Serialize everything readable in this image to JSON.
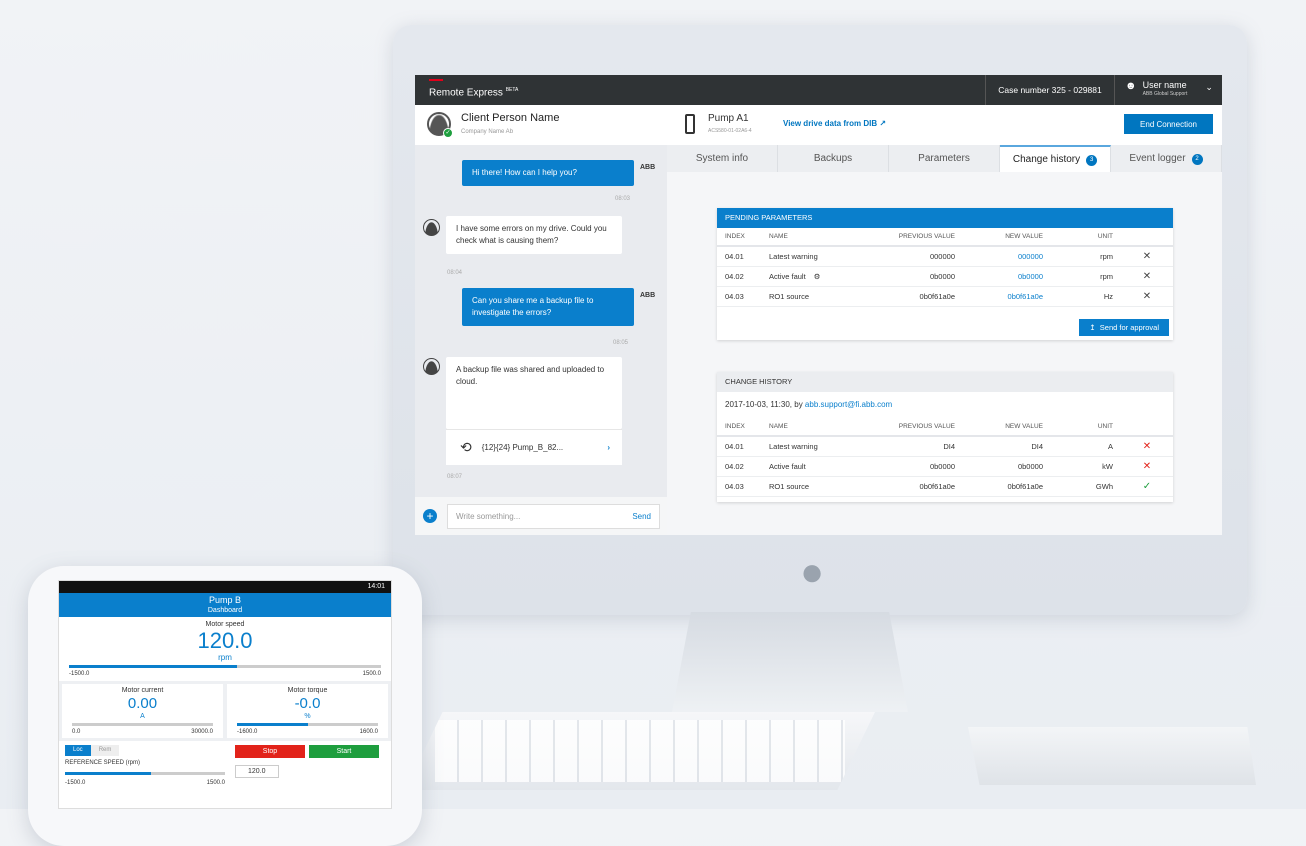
{
  "app": {
    "brand": "Remote Express",
    "beta": "BETA",
    "case_number": "Case number  325 - 029881",
    "user_name": "User name",
    "user_org": "ABB Global Support"
  },
  "client": {
    "name": "Client Person Name",
    "company": "Company Name Ab",
    "status": "online"
  },
  "drive": {
    "name": "Pump A1",
    "id": "ACS580-01-02A6-4",
    "link": "View drive data from DIB"
  },
  "end_connection": "End Connection",
  "tabs": [
    {
      "label": "System info"
    },
    {
      "label": "Backups"
    },
    {
      "label": "Parameters"
    },
    {
      "label": "Change history",
      "badge": "3",
      "active": true
    },
    {
      "label": "Event logger",
      "badge": "2"
    }
  ],
  "chat": {
    "messages": [
      {
        "from": "ABB",
        "text": "Hi there! How can I help you?",
        "time": "08:03"
      },
      {
        "from": "client",
        "text": "I have some errors on my drive. Could you check what is causing them?",
        "time": "08:04"
      },
      {
        "from": "ABB",
        "text": "Can you share me a backup file to investigate the errors?",
        "time": "08:05"
      },
      {
        "from": "client",
        "text": "A backup file was shared and uploaded to cloud.",
        "file": "{12}{24} Pump_B_82...",
        "time": "08:07"
      }
    ],
    "placeholder": "Write something...",
    "send": "Send"
  },
  "pending": {
    "title": "PENDING PARAMETERS",
    "columns": [
      "INDEX",
      "NAME",
      "PREVIOUS VALUE",
      "NEW VALUE",
      "UNIT"
    ],
    "rows": [
      [
        "04.01",
        "Latest warning",
        "000000",
        "000000",
        "rpm"
      ],
      [
        "04.02",
        "Active fault",
        "0b0000",
        "0b0000",
        "rpm"
      ],
      [
        "04.03",
        "RO1 source",
        "0b0f61a0e",
        "0b0f61a0e",
        "Hz"
      ]
    ],
    "button": "Send for approval"
  },
  "history": {
    "title": "CHANGE HISTORY",
    "date": "2017-10-03, 11:30, by ",
    "author": "abb.support@fi.abb.com",
    "columns": [
      "INDEX",
      "NAME",
      "PREVIOUS VALUE",
      "NEW VALUE",
      "UNIT"
    ],
    "rows": [
      [
        "04.01",
        "Latest warning",
        "DI4",
        "DI4",
        "A",
        "rejected"
      ],
      [
        "04.02",
        "Active fault",
        "0b0000",
        "0b0000",
        "kW",
        "rejected"
      ],
      [
        "04.03",
        "RO1 source",
        "0b0f61a0e",
        "0b0f61a0e",
        "GWh",
        "approved"
      ]
    ]
  },
  "colors": {
    "accent": "#0076c0",
    "topbar": "#2f3335",
    "reject": "#e2231a",
    "approve": "#1e9e3e"
  },
  "phone": {
    "time": "14:01",
    "title": "Pump B",
    "subtitle": "Dashboard",
    "speed": {
      "label": "Motor speed",
      "value": "120.0",
      "unit": "rpm",
      "min": "-1500.0",
      "max": "1500.0"
    },
    "current": {
      "label": "Motor current",
      "value": "0.00",
      "unit": "A",
      "min": "0.0",
      "max": "30000.0"
    },
    "torque": {
      "label": "Motor torque",
      "value": "-0.0",
      "unit": "%",
      "min": "-1600.0",
      "max": "1600.0"
    },
    "loc": "Loc",
    "rem": "Rem",
    "ref_label": "REFERENCE SPEED (rpm)",
    "ref_min": "-1500.0",
    "ref_max": "1500.0",
    "stop": "Stop",
    "start": "Start",
    "ref_value": "120.0"
  }
}
